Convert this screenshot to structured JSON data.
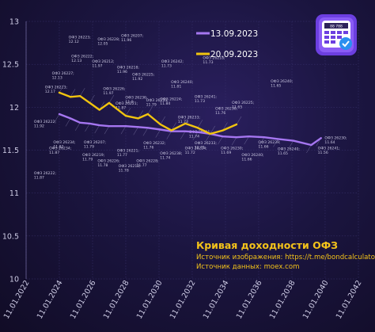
{
  "chart_data": {
    "type": "line",
    "title": "Кривая доходности ОФЗ",
    "sources": [
      "Источник изображения: https://t.me/bondcalculator",
      "Источник данных: moex.com"
    ],
    "xlabel": "",
    "ylabel": "",
    "x_ticks": [
      "11.01.2022",
      "11.01.2024",
      "11.01.2026",
      "11.01.2028",
      "11.01.2030",
      "11.01.2032",
      "11.01.2034",
      "11.01.2036",
      "11.01.2038",
      "11.01.2040",
      "11.01.2042"
    ],
    "y_ticks": [
      "10",
      "10.5",
      "11",
      "11.5",
      "12",
      "12.5",
      "13"
    ],
    "ylim": [
      10,
      13
    ],
    "grid": true,
    "legend_position": "top-right",
    "series": [
      {
        "name": "13.09.2023",
        "color": "#a576f0",
        "points": [
          [
            "2024-01-11",
            11.92
          ],
          [
            "2024-09-11",
            11.87
          ],
          [
            "2025-04-11",
            11.82
          ],
          [
            "2025-11-11",
            11.81
          ],
          [
            "2026-06-11",
            11.79
          ],
          [
            "2027-01-11",
            11.78
          ],
          [
            "2028-01-11",
            11.78
          ],
          [
            "2028-10-11",
            11.77
          ],
          [
            "2029-05-11",
            11.76
          ],
          [
            "2030-02-11",
            11.74
          ],
          [
            "2030-10-11",
            11.72
          ],
          [
            "2031-08-11",
            11.72
          ],
          [
            "2032-05-11",
            11.71
          ],
          [
            "2033-02-11",
            11.69
          ],
          [
            "2033-11-11",
            11.66
          ],
          [
            "2034-09-11",
            11.65
          ],
          [
            "2035-06-11",
            11.66
          ],
          [
            "2036-05-11",
            11.65
          ],
          [
            "2037-03-11",
            11.63
          ],
          [
            "2038-02-11",
            11.61
          ],
          [
            "2039-03-11",
            11.56
          ],
          [
            "2039-10-11",
            11.64
          ]
        ]
      },
      {
        "name": "20.09.2023",
        "color": "#f1c40f",
        "points": [
          [
            "2024-01-11",
            12.17
          ],
          [
            "2024-09-11",
            12.12
          ],
          [
            "2025-04-11",
            12.13
          ],
          [
            "2025-11-11",
            12.05
          ],
          [
            "2026-06-11",
            11.97
          ],
          [
            "2027-01-11",
            12.05
          ],
          [
            "2028-01-11",
            11.9
          ],
          [
            "2028-10-11",
            11.87
          ],
          [
            "2029-05-11",
            11.92
          ],
          [
            "2030-02-11",
            11.8
          ],
          [
            "2030-10-11",
            11.73
          ],
          [
            "2031-08-11",
            11.81
          ],
          [
            "2032-05-11",
            11.76
          ],
          [
            "2033-02-11",
            11.69
          ],
          [
            "2033-11-11",
            11.73
          ],
          [
            "2034-09-11",
            11.8
          ]
        ]
      }
    ],
    "annotations": [
      {
        "label": "ОФЗ 26223;",
        "value": "12.17",
        "x": "2023-03-01",
        "y": 12.22
      },
      {
        "label": "ОФЗ 26227;",
        "value": "12.13",
        "x": "2023-08-01",
        "y": 12.38
      },
      {
        "label": "ОФЗ 26222;",
        "value": "12.13",
        "x": "2024-10-01",
        "y": 12.58
      },
      {
        "label": "ОФЗ 26223;",
        "value": "12.12",
        "x": "2024-08-01",
        "y": 12.8
      },
      {
        "label": "ОФЗ 26228;",
        "value": "12.05",
        "x": "2026-05-01",
        "y": 12.78
      },
      {
        "label": "ОФЗ 26207;",
        "value": "11.96",
        "x": "2027-10-01",
        "y": 12.82
      },
      {
        "label": "ОФЗ 26212;",
        "value": "11.97",
        "x": "2026-01-01",
        "y": 12.52
      },
      {
        "label": "ОФЗ 26226;",
        "value": "11.97",
        "x": "2026-09-01",
        "y": 12.2
      },
      {
        "label": "ОФЗ 26218;",
        "value": "11.96",
        "x": "2027-07-01",
        "y": 12.45
      },
      {
        "label": "ОФЗ 26221;",
        "value": "11.87",
        "x": "2027-06-01",
        "y": 12.03
      },
      {
        "label": "ОФЗ 26236;",
        "value": "11.9",
        "x": "2028-01-01",
        "y": 12.1
      },
      {
        "label": "ОФЗ 26225;",
        "value": "11.92",
        "x": "2028-06-01",
        "y": 12.37
      },
      {
        "label": "ОФЗ 26233;",
        "value": "11.79",
        "x": "2029-04-01",
        "y": 12.07
      },
      {
        "label": "ОФЗ 26224;",
        "value": "11.84",
        "x": "2030-02-01",
        "y": 12.08
      },
      {
        "label": "ОФЗ 26240;",
        "value": "11.81",
        "x": "2030-10-01",
        "y": 12.28
      },
      {
        "label": "ОФЗ 26242;",
        "value": "11.73",
        "x": "2030-03-01",
        "y": 12.52
      },
      {
        "label": "ОФЗ 26218;",
        "value": "11.73",
        "x": "2032-09-01",
        "y": 12.56
      },
      {
        "label": "ОФЗ 26241;",
        "value": "11.73",
        "x": "2032-03-01",
        "y": 12.11
      },
      {
        "label": "ОФЗ 26230;",
        "value": "11.76",
        "x": "2033-06-01",
        "y": 11.97
      },
      {
        "label": "ОФЗ 26225;",
        "value": "11.65",
        "x": "2034-06-01",
        "y": 12.04
      },
      {
        "label": "ОФЗ 26240;",
        "value": "11.65",
        "x": "2036-10-01",
        "y": 12.29
      },
      {
        "label": "ОФЗ 26233;",
        "value": "11.73",
        "x": "2031-03-01",
        "y": 11.87
      },
      {
        "label": "ОФЗ 26211;",
        "value": "11.74",
        "x": "2031-11-01",
        "y": 11.7
      },
      {
        "label": "ОФЗ 26222;",
        "value": "11.92",
        "x": "2022-07-01",
        "y": 11.82
      },
      {
        "label": "ОФЗ 26234;",
        "value": "11.87",
        "x": "2023-06-01",
        "y": 11.51
      },
      {
        "label": "ОФЗ 26222;",
        "value": "11.87",
        "x": "2022-07-01",
        "y": 11.22
      },
      {
        "label": "ОФЗ 26234;",
        "value": "11.82",
        "x": "2023-09-01",
        "y": 11.58
      },
      {
        "label": "ОФЗ 26207;",
        "value": "11.79",
        "x": "2025-07-01",
        "y": 11.58
      },
      {
        "label": "ОФЗ 26219;",
        "value": "11.79",
        "x": "2025-06-01",
        "y": 11.43
      },
      {
        "label": "ОФЗ 26212;",
        "value": "11.78",
        "x": "2027-08-01",
        "y": 11.3
      },
      {
        "label": "ОФЗ 26226;",
        "value": "11.78",
        "x": "2026-05-01",
        "y": 11.36
      },
      {
        "label": "ОФЗ 26221;",
        "value": "11.77",
        "x": "2027-07-01",
        "y": 11.48
      },
      {
        "label": "ОФЗ 26232;",
        "value": "11.76",
        "x": "2029-02-01",
        "y": 11.57
      },
      {
        "label": "ОФЗ 26228;",
        "value": "11.77",
        "x": "2028-09-01",
        "y": 11.36
      },
      {
        "label": "ОФЗ 26238;",
        "value": "11.74",
        "x": "2030-02-01",
        "y": 11.45
      },
      {
        "label": "ОФЗ 26224;",
        "value": "11.72",
        "x": "2031-08-01",
        "y": 11.51
      },
      {
        "label": "ОФЗ 26230;",
        "value": "11.69",
        "x": "2033-10-01",
        "y": 11.51
      },
      {
        "label": "ОФЗ 26240;",
        "value": "11.66",
        "x": "2035-01-01",
        "y": 11.43
      },
      {
        "label": "ОФЗ 26240;",
        "value": "11.65",
        "x": "2037-03-01",
        "y": 11.5
      },
      {
        "label": "ОФЗ 26233;",
        "value": "11.71",
        "x": "2032-03-01",
        "y": 11.57
      },
      {
        "label": "ОФЗ 26239;",
        "value": "11.66",
        "x": "2036-01-01",
        "y": 11.58
      },
      {
        "label": "ОФЗ 26241;",
        "value": "11.56",
        "x": "2039-08-01",
        "y": 11.51
      },
      {
        "label": "ОФЗ 26230;",
        "value": "11.64",
        "x": "2040-01-01",
        "y": 11.63
      }
    ]
  },
  "badge": {
    "name": "calculator-badge-icon",
    "text": "88 788"
  }
}
